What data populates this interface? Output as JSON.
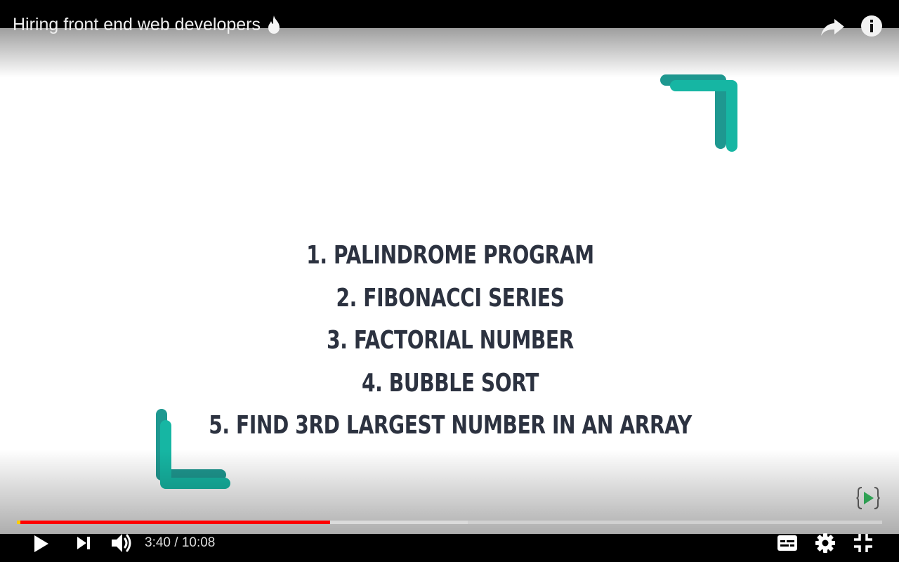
{
  "video": {
    "title": "Hiring front end web developers",
    "slide_items": [
      "1. PALINDROME PROGRAM",
      "2. FIBONACCI SERIES",
      "3. FACTORIAL NUMBER",
      "4. BUBBLE SORT",
      "5. FIND 3RD LARGEST NUMBER IN AN ARRAY"
    ]
  },
  "player": {
    "current_time": "3:40",
    "separator": "/",
    "duration": "10:08",
    "played_fraction": 0.362,
    "buffered_fraction": 0.521
  },
  "icons": {
    "title_emoji": "flame-icon",
    "share": "share-arrow-icon",
    "info": "info-icon",
    "play": "play-icon",
    "next": "next-track-icon",
    "volume": "volume-icon",
    "captions": "subtitles-icon",
    "settings": "gear-icon",
    "fullscreen_exit": "exit-fullscreen-icon",
    "watermark": "channel-watermark-icon"
  },
  "colors": {
    "accent_teal": "#16b6a3",
    "accent_teal_dark": "#1e9890",
    "slide_text": "#2c3240",
    "progress_played": "#ff0000",
    "progress_buffer": "#d8d8d8"
  }
}
